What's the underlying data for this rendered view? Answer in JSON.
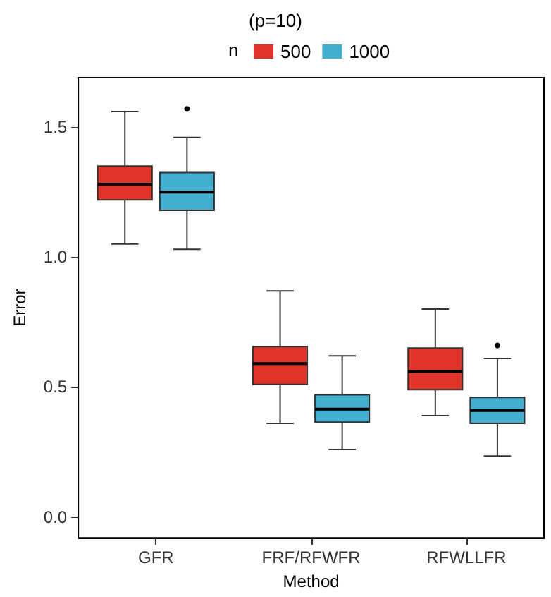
{
  "chart_data": {
    "type": "box",
    "title": "(p=10)",
    "xlabel": "Method",
    "ylabel": "Error",
    "legend_title": "n",
    "legend": "top",
    "categories": [
      "GFR",
      "FRF/RFWFR",
      "RFWLLFR"
    ],
    "ylim": [
      -0.08,
      1.69
    ],
    "yticks": [
      {
        "value": 0,
        "label": "0.0"
      },
      0.5,
      {
        "value": 1,
        "label": "1.0"
      },
      1.5
    ],
    "series": [
      {
        "name": "500",
        "color": "#e03428",
        "boxes": [
          {
            "low": 1.05,
            "q1": 1.22,
            "median": 1.28,
            "q3": 1.35,
            "high": 1.56
          },
          {
            "low": 0.36,
            "q1": 0.51,
            "median": 0.59,
            "q3": 0.655,
            "high": 0.87
          },
          {
            "low": 0.39,
            "q1": 0.49,
            "median": 0.56,
            "q3": 0.65,
            "high": 0.8
          }
        ]
      },
      {
        "name": "1000",
        "color": "#42afd0",
        "boxes": [
          {
            "low": 1.03,
            "q1": 1.18,
            "median": 1.25,
            "q3": 1.325,
            "high": 1.46,
            "outliers": [
              1.57
            ]
          },
          {
            "low": 0.26,
            "q1": 0.365,
            "median": 0.415,
            "q3": 0.47,
            "high": 0.62
          },
          {
            "low": 0.235,
            "q1": 0.36,
            "median": 0.41,
            "q3": 0.46,
            "high": 0.61,
            "outliers": [
              0.66
            ]
          }
        ]
      }
    ]
  }
}
